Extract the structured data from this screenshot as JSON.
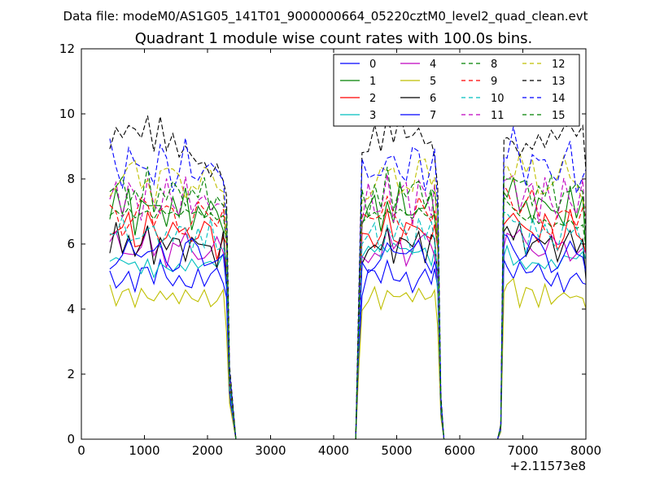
{
  "suptitle": "Data file: modeM0/AS1G05_141T01_9000000664_05220cztM0_level2_quad_clean.evt",
  "chart_data": {
    "type": "line",
    "title": "Quadrant 1 module wise count rates with 100.0s bins.",
    "xlabel": "",
    "ylabel": "",
    "xlim": [
      0,
      8000
    ],
    "ylim": [
      0,
      12
    ],
    "x_offset_label": "+2.11573e8",
    "x_ticks": [
      0,
      1000,
      2000,
      3000,
      4000,
      5000,
      6000,
      7000,
      8000
    ],
    "y_ticks": [
      0,
      2,
      4,
      6,
      8,
      10,
      12
    ],
    "x_tick_labels": [
      "0",
      "1000",
      "2000",
      "3000",
      "4000",
      "5000",
      "6000",
      "7000",
      "8000"
    ],
    "y_tick_labels": [
      "0",
      "2",
      "4",
      "6",
      "8",
      "10",
      "12"
    ],
    "grid": false,
    "legend_position": "top-right",
    "series": [
      {
        "name": "0",
        "color": "#0000ff",
        "dash": "solid",
        "base": 5.0
      },
      {
        "name": "1",
        "color": "#008000",
        "dash": "solid",
        "base": 7.1
      },
      {
        "name": "2",
        "color": "#ff0000",
        "dash": "solid",
        "base": 6.4
      },
      {
        "name": "3",
        "color": "#00bfbf",
        "dash": "solid",
        "base": 5.6
      },
      {
        "name": "4",
        "color": "#bf00bf",
        "dash": "solid",
        "base": 5.9
      },
      {
        "name": "5",
        "color": "#bfbf00",
        "dash": "solid",
        "base": 4.4
      },
      {
        "name": "6",
        "color": "#000000",
        "dash": "solid",
        "base": 6.0
      },
      {
        "name": "7",
        "color": "#0000ff",
        "dash": "solid",
        "base": 5.7
      },
      {
        "name": "8",
        "color": "#008000",
        "dash": "dashed",
        "base": 6.6
      },
      {
        "name": "9",
        "color": "#ff0000",
        "dash": "dashed",
        "base": 6.9
      },
      {
        "name": "10",
        "color": "#00bfbf",
        "dash": "dashed",
        "base": 6.3
      },
      {
        "name": "11",
        "color": "#bf00bf",
        "dash": "dashed",
        "base": 7.4
      },
      {
        "name": "12",
        "color": "#bfbf00",
        "dash": "dashed",
        "base": 8.0
      },
      {
        "name": "13",
        "color": "#000000",
        "dash": "dashed",
        "base": 9.0
      },
      {
        "name": "14",
        "color": "#0000ff",
        "dash": "dashed",
        "base": 8.4
      },
      {
        "name": "15",
        "color": "#008000",
        "dash": "dashed",
        "base": 7.6
      }
    ],
    "x_bins": [
      450,
      550,
      650,
      750,
      850,
      950,
      1050,
      1150,
      1250,
      1350,
      1450,
      1550,
      1650,
      1750,
      1850,
      1950,
      2050,
      2150,
      2250,
      2300,
      2350,
      2450,
      4350,
      4400,
      4450,
      4550,
      4650,
      4750,
      4850,
      4950,
      5050,
      5150,
      5250,
      5350,
      5450,
      5550,
      5600,
      5650,
      5700,
      5750,
      6600,
      6650,
      6700,
      6750,
      6850,
      6950,
      7050,
      7150,
      7250,
      7350,
      7450,
      7550,
      7650,
      7750,
      7850,
      7950,
      8000
    ],
    "profile": [
      1.0,
      1.02,
      0.99,
      1.03,
      0.98,
      1.0,
      1.01,
      0.97,
      1.02,
      0.99,
      1.0,
      0.98,
      1.01,
      0.99,
      1.0,
      0.97,
      0.99,
      0.96,
      0.98,
      0.85,
      0.25,
      0.0,
      0.0,
      0.5,
      0.95,
      0.98,
      1.0,
      0.97,
      1.01,
      0.99,
      1.02,
      1.0,
      0.98,
      1.03,
      1.0,
      0.99,
      1.01,
      0.85,
      0.15,
      0.0,
      0.0,
      0.05,
      1.1,
      1.08,
      1.05,
      1.02,
      1.0,
      1.03,
      0.99,
      1.01,
      0.98,
      1.0,
      0.99,
      1.02,
      0.98,
      1.0,
      0.9
    ]
  }
}
